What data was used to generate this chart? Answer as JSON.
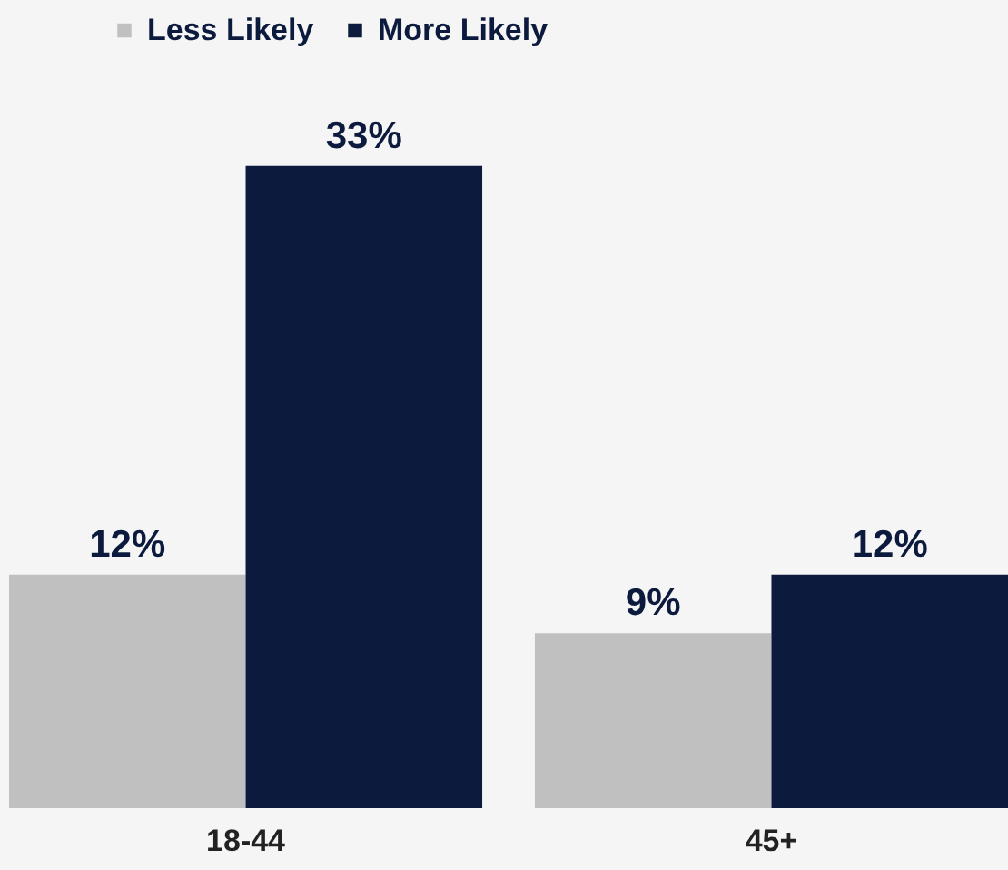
{
  "chart_data": {
    "type": "bar",
    "categories": [
      "18-44",
      "45+"
    ],
    "series": [
      {
        "name": "Less Likely",
        "color": "#c0c0c0",
        "values": [
          12,
          9
        ],
        "value_labels": [
          "12%",
          "9%"
        ]
      },
      {
        "name": "More Likely",
        "color": "#0c1a3d",
        "values": [
          33,
          12
        ],
        "value_labels": [
          "33%",
          "12%"
        ]
      }
    ],
    "legend": "top left",
    "grid": false
  }
}
